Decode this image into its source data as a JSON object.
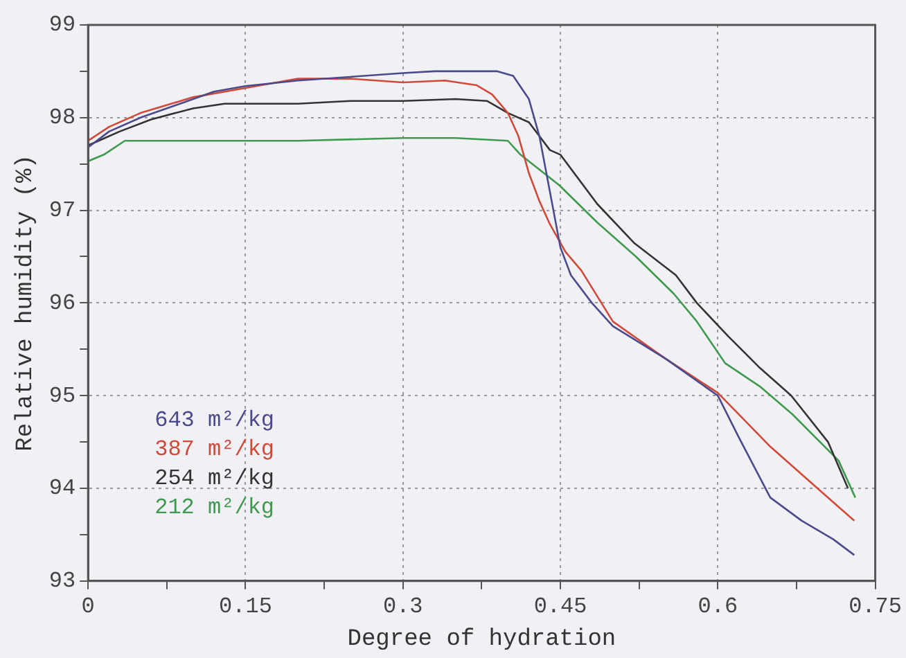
{
  "chart_data": {
    "type": "line",
    "xlabel": "Degree of hydration",
    "ylabel": "Relative humidity (%)",
    "xlim": [
      0,
      0.75
    ],
    "xticks": [
      0,
      {
        "value": 0.075,
        "label": null
      },
      0.15,
      {
        "value": 0.225,
        "label": null
      },
      0.3,
      {
        "value": 0.375,
        "label": null
      },
      0.45,
      {
        "value": 0.525,
        "label": null
      },
      0.6,
      {
        "value": 0.675,
        "label": null
      },
      0.75
    ],
    "ylim": [
      93,
      99
    ],
    "yticks": [
      93,
      {
        "value": 93.5,
        "label": null
      },
      94,
      {
        "value": 94.5,
        "label": null
      },
      95,
      {
        "value": 95.5,
        "label": null
      },
      96,
      {
        "value": 96.5,
        "label": null
      },
      97,
      {
        "value": 97.5,
        "label": null
      },
      98,
      {
        "value": 98.5,
        "label": null
      },
      99
    ],
    "grid": true,
    "legend": "bottom left",
    "marker": "none",
    "line_style": "solid",
    "series": [
      {
        "name": "643 m²/kg",
        "color": "#4a4a8c",
        "x": [
          0,
          0.02,
          0.05,
          0.08,
          0.12,
          0.15,
          0.2,
          0.25,
          0.3,
          0.33,
          0.36,
          0.39,
          0.405,
          0.42,
          0.43,
          0.44,
          0.45,
          0.46,
          0.48,
          0.5,
          0.55,
          0.6,
          0.62,
          0.65,
          0.68,
          0.71,
          0.73
        ],
        "values": [
          97.68,
          97.85,
          98.0,
          98.12,
          98.28,
          98.34,
          98.4,
          98.44,
          98.48,
          98.5,
          98.5,
          98.5,
          98.45,
          98.2,
          97.8,
          97.2,
          96.6,
          96.3,
          96.0,
          95.75,
          95.4,
          95.0,
          94.55,
          93.9,
          93.65,
          93.45,
          93.28
        ]
      },
      {
        "name": "387 m²/kg",
        "color": "#d04a3a",
        "x": [
          0,
          0.02,
          0.05,
          0.1,
          0.15,
          0.2,
          0.25,
          0.3,
          0.34,
          0.37,
          0.385,
          0.4,
          0.41,
          0.42,
          0.43,
          0.44,
          0.455,
          0.47,
          0.5,
          0.55,
          0.6,
          0.65,
          0.7,
          0.73
        ],
        "values": [
          97.75,
          97.9,
          98.05,
          98.22,
          98.32,
          98.42,
          98.42,
          98.38,
          98.4,
          98.35,
          98.25,
          98.05,
          97.8,
          97.4,
          97.1,
          96.85,
          96.55,
          96.35,
          95.8,
          95.4,
          95.03,
          94.45,
          93.95,
          93.65
        ]
      },
      {
        "name": "254 m²/kg",
        "color": "#333333",
        "x": [
          0,
          0.03,
          0.06,
          0.1,
          0.13,
          0.2,
          0.25,
          0.3,
          0.35,
          0.38,
          0.4,
          0.42,
          0.43,
          0.44,
          0.45,
          0.485,
          0.52,
          0.56,
          0.58,
          0.61,
          0.64,
          0.67,
          0.705,
          0.724
        ],
        "values": [
          97.7,
          97.85,
          97.98,
          98.1,
          98.15,
          98.15,
          98.18,
          98.18,
          98.2,
          98.18,
          98.05,
          97.95,
          97.8,
          97.65,
          97.6,
          97.07,
          96.65,
          96.3,
          96.0,
          95.64,
          95.3,
          95.0,
          94.5,
          94.0
        ]
      },
      {
        "name": "212 m²/kg",
        "color": "#3f9a4f",
        "x": [
          0,
          0.015,
          0.035,
          0.1,
          0.2,
          0.3,
          0.35,
          0.4,
          0.412,
          0.449,
          0.485,
          0.522,
          0.558,
          0.58,
          0.607,
          0.64,
          0.671,
          0.715,
          0.731
        ],
        "values": [
          97.53,
          97.6,
          97.75,
          97.75,
          97.75,
          97.78,
          97.78,
          97.75,
          97.6,
          97.27,
          96.87,
          96.5,
          96.1,
          95.8,
          95.35,
          95.1,
          94.8,
          94.3,
          93.9
        ]
      }
    ]
  }
}
